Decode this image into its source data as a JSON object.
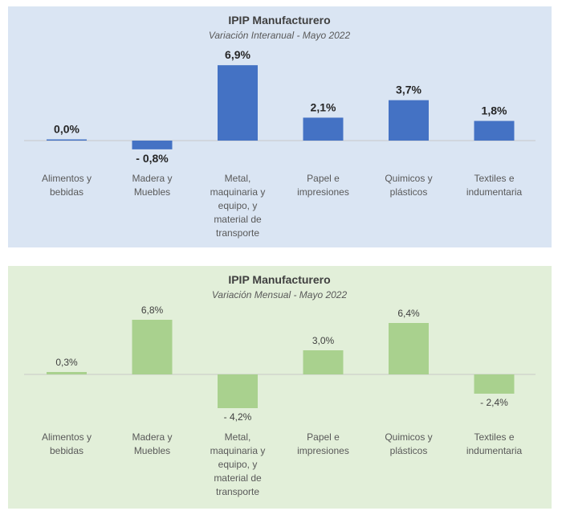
{
  "chart_data": [
    {
      "type": "bar",
      "title": "IPIP Manufacturero",
      "subtitle": "Variación Interanual - Mayo 2022",
      "categories": [
        [
          "Alimentos y",
          "bebidas"
        ],
        [
          "Madera y",
          "Muebles"
        ],
        [
          "Metal,",
          "maquinaria y",
          "equipo, y",
          "material de",
          "transporte"
        ],
        [
          "Papel e",
          "impresiones"
        ],
        [
          "Quimicos y",
          "plásticos"
        ],
        [
          "Textiles e",
          "indumentaria"
        ]
      ],
      "values": [
        0.0,
        -0.8,
        6.9,
        2.1,
        3.7,
        1.8
      ],
      "data_labels": [
        "0,0%",
        "- 0,8%",
        "6,9%",
        "2,1%",
        "3,7%",
        "1,8%"
      ],
      "bar_color": "#4472c4",
      "background": "#dae5f3",
      "ylim": [
        -0.8,
        6.9
      ],
      "grid": false,
      "legend": "none"
    },
    {
      "type": "bar",
      "title": "IPIP Manufacturero",
      "subtitle": "Variación Mensual - Mayo 2022",
      "categories": [
        [
          "Alimentos y",
          "bebidas"
        ],
        [
          "Madera y",
          "Muebles"
        ],
        [
          "Metal,",
          "maquinaria y",
          "equipo, y",
          "material de",
          "transporte"
        ],
        [
          "Papel e",
          "impresiones"
        ],
        [
          "Quimicos y",
          "plásticos"
        ],
        [
          "Textiles e",
          "indumentaria"
        ]
      ],
      "values": [
        0.3,
        6.8,
        -4.2,
        3.0,
        6.4,
        -2.4
      ],
      "data_labels": [
        "0,3%",
        "6,8%",
        "- 4,2%",
        "3,0%",
        "6,4%",
        "- 2,4%"
      ],
      "bar_color": "#a9d18e",
      "background": "#e2efd9",
      "ylim": [
        -4.2,
        6.8
      ],
      "grid": false,
      "legend": "none"
    }
  ]
}
